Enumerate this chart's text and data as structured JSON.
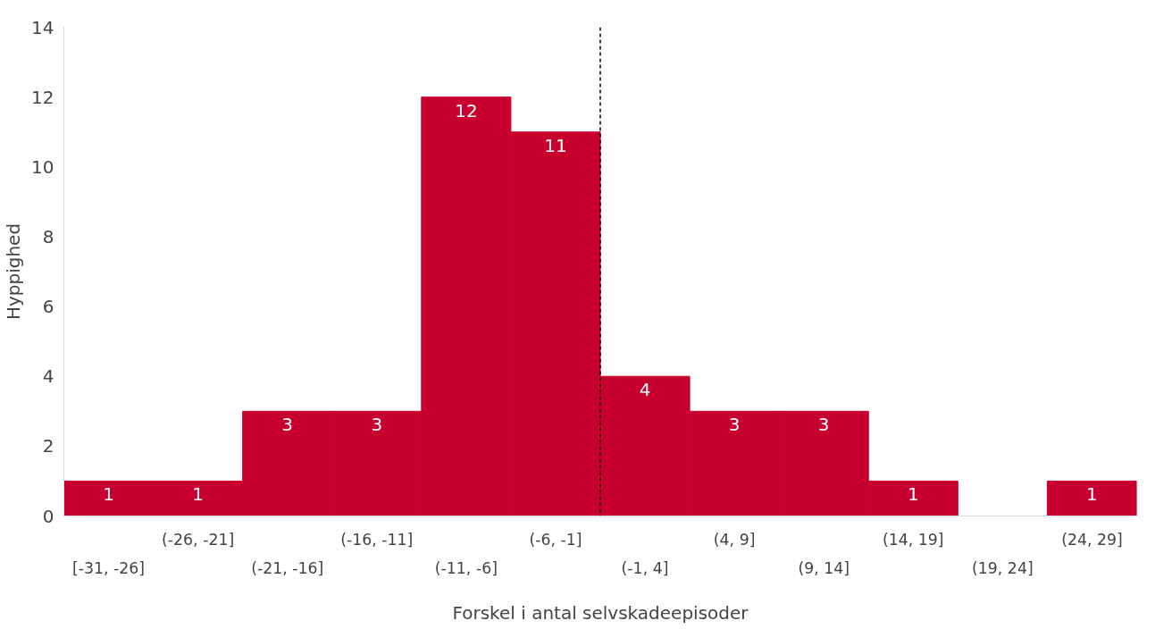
{
  "chart_data": {
    "type": "bar",
    "xlabel": "Forskel i antal selvskadeepisoder",
    "ylabel": "Hyppighed",
    "categories": [
      "[-31, -26]",
      "(-26, -21]",
      "(-21, -16]",
      "(-16, -11]",
      "(-11, -6]",
      "(-6, -1]",
      "(-1, 4]",
      "(4, 9]",
      "(9, 14]",
      "(14, 19]",
      "(19, 24]",
      "(24, 29]"
    ],
    "values": [
      1,
      1,
      3,
      3,
      12,
      11,
      4,
      3,
      3,
      1,
      0,
      1
    ],
    "color": "#c8002f",
    "value_labels": [
      "1",
      "1",
      "3",
      "3",
      "12",
      "11",
      "4",
      "3",
      "3",
      "1",
      null,
      "1"
    ],
    "ylim": [
      0,
      14
    ],
    "yticks": [
      0,
      2,
      4,
      6,
      8,
      10,
      12,
      14
    ],
    "grid": false
  }
}
